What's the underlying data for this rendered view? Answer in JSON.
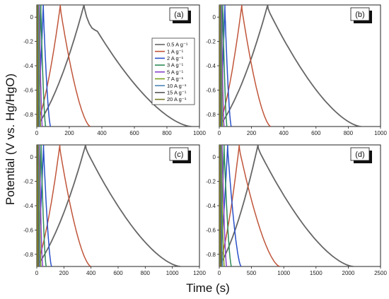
{
  "figure": {
    "ylabel": "Potential (V vs. Hg/HgO)",
    "xlabel": "Time (s)"
  },
  "legend": {
    "entries": [
      "0.5 A g⁻¹",
      "1 A g⁻¹",
      "2 A g⁻¹",
      "3 A g⁻¹",
      "5 A g⁻¹",
      "7 A g⁻¹",
      "10 A g⁻¹",
      "15 A g⁻¹",
      "20 A g⁻¹"
    ]
  },
  "colors": {
    "0.5": "#666666",
    "1": "#c0553a",
    "2": "#2a50c8",
    "3": "#2e8b57",
    "5": "#8844cc",
    "7": "#7aa020",
    "10": "#4b86b8",
    "15": "#555555",
    "20": "#7a7a2a"
  },
  "chart_data": [
    {
      "type": "line",
      "panel_label": "(a)",
      "xlim": [
        0,
        1000
      ],
      "ylim": [
        -0.9,
        0.1
      ],
      "xticks": [
        0,
        200,
        400,
        600,
        800,
        1000
      ],
      "yticks": [
        0,
        -0.2,
        -0.4,
        -0.6,
        -0.8
      ],
      "series": [
        {
          "name": "0.5 A g⁻¹",
          "color": "#666666",
          "charge_end": 290,
          "discharge_end": 950,
          "shoulder": true
        },
        {
          "name": "1 A g⁻¹",
          "color": "#c0553a",
          "charge_end": 145,
          "discharge_end": 330
        },
        {
          "name": "2 A g⁻¹",
          "color": "#2a50c8",
          "charge_end": 40,
          "discharge_end": 85
        },
        {
          "name": "3 A g⁻¹",
          "color": "#2e8b57",
          "charge_end": 25,
          "discharge_end": 55
        },
        {
          "name": "5 A g⁻¹",
          "color": "#8844cc",
          "charge_end": 16,
          "discharge_end": 34
        },
        {
          "name": "7 A g⁻¹",
          "color": "#7aa020",
          "charge_end": 11,
          "discharge_end": 24
        },
        {
          "name": "10 A g⁻¹",
          "color": "#4b86b8",
          "charge_end": 8,
          "discharge_end": 17
        },
        {
          "name": "15 A g⁻¹",
          "color": "#555555",
          "charge_end": 5,
          "discharge_end": 11
        },
        {
          "name": "20 A g⁻¹",
          "color": "#7a7a2a",
          "charge_end": 4,
          "discharge_end": 8
        }
      ]
    },
    {
      "type": "line",
      "panel_label": "(b)",
      "xlim": [
        0,
        1000
      ],
      "ylim": [
        -0.9,
        0.1
      ],
      "xticks": [
        0,
        200,
        400,
        600,
        800,
        1000
      ],
      "yticks": [
        0,
        -0.2,
        -0.4,
        -0.6,
        -0.8
      ],
      "series": [
        {
          "color": "#666666",
          "charge_end": 300,
          "discharge_end": 880
        },
        {
          "color": "#c0553a",
          "charge_end": 140,
          "discharge_end": 320
        },
        {
          "color": "#2a50c8",
          "charge_end": 35,
          "discharge_end": 75
        },
        {
          "color": "#2e8b57",
          "charge_end": 22,
          "discharge_end": 48
        },
        {
          "color": "#8844cc",
          "charge_end": 14,
          "discharge_end": 30
        },
        {
          "color": "#7aa020",
          "charge_end": 10,
          "discharge_end": 21
        },
        {
          "color": "#4b86b8",
          "charge_end": 7,
          "discharge_end": 15
        },
        {
          "color": "#555555",
          "charge_end": 5,
          "discharge_end": 10
        },
        {
          "color": "#7a7a2a",
          "charge_end": 3,
          "discharge_end": 7
        }
      ]
    },
    {
      "type": "line",
      "panel_label": "(c)",
      "xlim": [
        0,
        1200
      ],
      "ylim": [
        -0.9,
        0.1
      ],
      "xticks": [
        0,
        200,
        400,
        600,
        800,
        1000,
        1200
      ],
      "yticks": [
        0,
        -0.2,
        -0.4,
        -0.6,
        -0.8
      ],
      "series": [
        {
          "color": "#666666",
          "charge_end": 360,
          "discharge_end": 1060
        },
        {
          "color": "#c0553a",
          "charge_end": 170,
          "discharge_end": 400
        },
        {
          "color": "#2a50c8",
          "charge_end": 50,
          "discharge_end": 110
        },
        {
          "color": "#2e8b57",
          "charge_end": 32,
          "discharge_end": 70
        },
        {
          "color": "#8844cc",
          "charge_end": 20,
          "discharge_end": 44
        },
        {
          "color": "#7aa020",
          "charge_end": 14,
          "discharge_end": 31
        },
        {
          "color": "#4b86b8",
          "charge_end": 10,
          "discharge_end": 22
        },
        {
          "color": "#555555",
          "charge_end": 7,
          "discharge_end": 15
        },
        {
          "color": "#7a7a2a",
          "charge_end": 5,
          "discharge_end": 11
        }
      ]
    },
    {
      "type": "line",
      "panel_label": "(d)",
      "xlim": [
        0,
        2500
      ],
      "ylim": [
        -0.9,
        0.1
      ],
      "xticks": [
        0,
        500,
        1000,
        1500,
        2000,
        2500
      ],
      "yticks": [
        0,
        -0.2,
        -0.4,
        -0.6,
        -0.8
      ],
      "series": [
        {
          "color": "#666666",
          "charge_end": 600,
          "discharge_end": 2080
        },
        {
          "color": "#c0553a",
          "charge_end": 310,
          "discharge_end": 940
        },
        {
          "color": "#2a50c8",
          "charge_end": 130,
          "discharge_end": 340
        },
        {
          "color": "#2e8b57",
          "charge_end": 75,
          "discharge_end": 190
        },
        {
          "color": "#8844cc",
          "charge_end": 45,
          "discharge_end": 115
        },
        {
          "color": "#7aa020",
          "charge_end": 30,
          "discharge_end": 78
        },
        {
          "color": "#4b86b8",
          "charge_end": 20,
          "discharge_end": 52
        },
        {
          "color": "#555555",
          "charge_end": 13,
          "discharge_end": 34
        },
        {
          "color": "#7a7a2a",
          "charge_end": 9,
          "discharge_end": 24
        }
      ]
    }
  ]
}
